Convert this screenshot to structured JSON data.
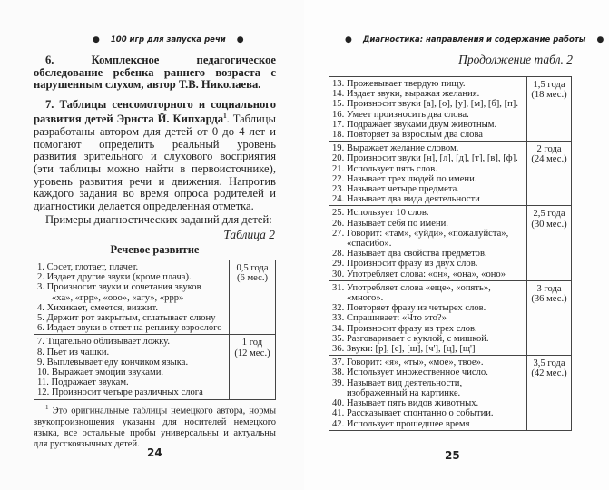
{
  "left_page": {
    "running_header": "100 игр для запуска речи",
    "para6": "6. Комплексное педагогическое обследование ребенка раннего возраста с нарушенным слухом, автор Т.В. Николаева.",
    "para7_bold": "7. Таблицы сенсомоторного и социального развития детей Эрнста Й. Кипхарда",
    "para7_footnote_mark": "1",
    "para7_rest": ". Таблицы разработаны автором для детей от 0 до 4 лет и помогают определить реальный уровень развития зрительного и слухового восприятия (эти таблицы можно найти в первоисточнике), уровень развития речи и движения. Напротив каждого задания во время опроса родителей и диагностики делается определенная отметка.",
    "examples_text": "Примеры диагностических заданий для детей:",
    "table_caption": "Таблица 2",
    "table_title": "Речевое развитие",
    "table": [
      {
        "items": [
          {
            "text": "1. Сосет, глотает, плачет."
          },
          {
            "text": "2. Издает другие звуки (кроме плача)."
          },
          {
            "text": "3. Произносит звуки и сочетания звуков",
            "cont": "«ха», «грр», «ооо», «агу», «ррр»"
          },
          {
            "text": "4. Хихикает, смеется, визжит."
          },
          {
            "text": "5. Держит рот закрытым, сглатывает слюну"
          },
          {
            "text": "6. Издает звуки в ответ на реплику взрослого"
          }
        ],
        "age": "0,5 года",
        "months": "(6 мес.)"
      },
      {
        "items": [
          {
            "text": "7. Тщательно облизывает ложку."
          },
          {
            "text": "8. Пьет из чашки."
          },
          {
            "text": "9. Выплевывает еду кончиком языка."
          },
          {
            "text": "10. Выражает эмоции звуками."
          },
          {
            "text": "11. Подражает звукам."
          },
          {
            "text": "12. Произносит четыре различных слога"
          }
        ],
        "age": "1 год",
        "months": "(12 мес.)"
      }
    ],
    "footnote_mark": "1",
    "footnote": "Это оригинальные таблицы немецкого автора, нормы звукопроизношения указаны для носителей немецкого языка, все остальные пробы универсальны и актуальны для русскоязычных детей.",
    "page_number": "24"
  },
  "right_page": {
    "running_header": "Диагностика: направления и содержание работы",
    "table_caption": "Продолжение табл. 2",
    "table": [
      {
        "items": [
          {
            "text": "13. Прожевывает твердую пищу."
          },
          {
            "text": "14. Издает звуки, выражая желания."
          },
          {
            "text": "15. Произносит звуки [а], [о], [у], [м], [б], [п]."
          },
          {
            "text": "16. Умеет произносить два слова."
          },
          {
            "text": "17. Подражает звуками двум животным."
          },
          {
            "text": "18. Повторяет за взрослым два слова"
          }
        ],
        "age": "1,5 года",
        "months": "(18 мес.)"
      },
      {
        "items": [
          {
            "text": "19. Выражает желание словом."
          },
          {
            "text": "20. Произносит звуки [н], [л], [д], [т], [в], [ф]."
          },
          {
            "text": "21. Использует пять слов."
          },
          {
            "text": "22. Называет трех людей по имени."
          },
          {
            "text": "23. Называет четыре предмета."
          },
          {
            "text": "24. Называет два вида деятельности"
          }
        ],
        "age": "2 года",
        "months": "(24 мес.)"
      },
      {
        "items": [
          {
            "text": "25. Использует 10 слов."
          },
          {
            "text": "26. Называет себя по имени."
          },
          {
            "text": "27. Говорит: «там», «уйди», «пожалуйста»,",
            "cont": "«спасибо»."
          },
          {
            "text": "28. Называет два свойства предметов."
          },
          {
            "text": "29. Произносит фразу из двух слов."
          },
          {
            "text": "30. Употребляет слова: «он», «она», «оно»"
          }
        ],
        "age": "2,5 года",
        "months": "(30 мес.)"
      },
      {
        "items": [
          {
            "text": "31. Употребляет слова «еще», «опять»,",
            "cont": "«много»."
          },
          {
            "text": "32. Повторяет фразу из четырех слов."
          },
          {
            "text": "33. Спрашивает: «Что это?»"
          },
          {
            "text": "34. Произносит фразу из трех слов."
          },
          {
            "text": "35. Разговаривает с куклой, с мишкой."
          },
          {
            "text": "36. Звуки: [р], [с], [ш], [ч'], [ц], [щ']"
          }
        ],
        "age": "3 года",
        "months": "(36 мес.)"
      },
      {
        "items": [
          {
            "text": "37. Говорит: «я», «ты», «мое», твое»."
          },
          {
            "text": "38. Использует множественное число."
          },
          {
            "text": "39. Называет вид деятельности,",
            "cont": "изображенный на картинке."
          },
          {
            "text": "40. Называет пять видов животных."
          },
          {
            "text": "41. Рассказывает спонтанно о событии."
          },
          {
            "text": "42. Использует прошедшее время"
          }
        ],
        "age": "3,5 года",
        "months": "(42 мес.)"
      }
    ],
    "page_number": "25"
  }
}
